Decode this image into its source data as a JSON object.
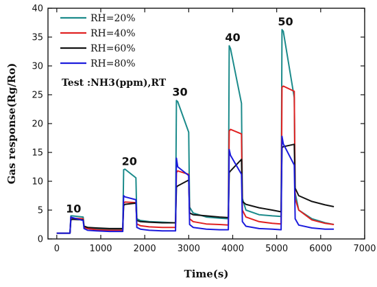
{
  "chart_data": {
    "type": "line",
    "title": "",
    "xlabel": "Time(s)",
    "ylabel": "Gas response(Rg/Ro)",
    "xlim": [
      -200,
      7000
    ],
    "ylim": [
      0,
      40
    ],
    "xticks": [
      0,
      1000,
      2000,
      3000,
      4000,
      5000,
      6000,
      7000
    ],
    "yticks": [
      0,
      5,
      10,
      15,
      20,
      25,
      30,
      35,
      40
    ],
    "grid": false,
    "legend_position": "top-left",
    "note": "Test :NH3(ppm),RT",
    "annotations": [
      {
        "text": "10",
        "x": 380,
        "y": 4.6
      },
      {
        "text": "20",
        "x": 1650,
        "y": 12.8
      },
      {
        "text": "30",
        "x": 2800,
        "y": 24.8
      },
      {
        "text": "40",
        "x": 4000,
        "y": 34.3
      },
      {
        "text": "50",
        "x": 5200,
        "y": 37.0
      }
    ],
    "series": [
      {
        "name": "RH=20%",
        "color": "#1a8a8a",
        "points": [
          [
            0,
            1.0
          ],
          [
            300,
            1.0
          ],
          [
            320,
            4.0
          ],
          [
            350,
            4.0
          ],
          [
            600,
            3.8
          ],
          [
            620,
            2.2
          ],
          [
            700,
            2.0
          ],
          [
            900,
            1.8
          ],
          [
            1200,
            1.7
          ],
          [
            1500,
            1.6
          ],
          [
            1520,
            12.0
          ],
          [
            1550,
            12.1
          ],
          [
            1800,
            10.6
          ],
          [
            1820,
            3.5
          ],
          [
            1900,
            3.2
          ],
          [
            2100,
            3.0
          ],
          [
            2400,
            2.9
          ],
          [
            2700,
            2.8
          ],
          [
            2720,
            24.0
          ],
          [
            2750,
            23.8
          ],
          [
            3000,
            18.5
          ],
          [
            3020,
            5.5
          ],
          [
            3100,
            4.5
          ],
          [
            3400,
            3.8
          ],
          [
            3700,
            3.6
          ],
          [
            3900,
            3.5
          ],
          [
            3920,
            33.5
          ],
          [
            3950,
            33.0
          ],
          [
            4200,
            23.5
          ],
          [
            4220,
            7.0
          ],
          [
            4300,
            5.0
          ],
          [
            4600,
            4.2
          ],
          [
            4900,
            4.0
          ],
          [
            5100,
            3.9
          ],
          [
            5120,
            36.3
          ],
          [
            5150,
            36.0
          ],
          [
            5400,
            24.5
          ],
          [
            5420,
            8.0
          ],
          [
            5500,
            5.0
          ],
          [
            5800,
            3.5
          ],
          [
            6100,
            2.8
          ],
          [
            6300,
            2.5
          ]
        ]
      },
      {
        "name": "RH=40%",
        "color": "#e02020",
        "points": [
          [
            0,
            1.0
          ],
          [
            300,
            1.0
          ],
          [
            320,
            3.6
          ],
          [
            350,
            3.6
          ],
          [
            600,
            3.5
          ],
          [
            620,
            2.0
          ],
          [
            700,
            1.8
          ],
          [
            900,
            1.6
          ],
          [
            1200,
            1.5
          ],
          [
            1500,
            1.5
          ],
          [
            1520,
            6.2
          ],
          [
            1550,
            6.4
          ],
          [
            1800,
            6.3
          ],
          [
            1820,
            2.6
          ],
          [
            1900,
            2.3
          ],
          [
            2100,
            2.1
          ],
          [
            2400,
            2.0
          ],
          [
            2700,
            2.0
          ],
          [
            2720,
            11.5
          ],
          [
            2750,
            11.8
          ],
          [
            3000,
            11.2
          ],
          [
            3020,
            3.5
          ],
          [
            3100,
            3.0
          ],
          [
            3400,
            2.6
          ],
          [
            3700,
            2.5
          ],
          [
            3900,
            2.4
          ],
          [
            3920,
            18.7
          ],
          [
            3950,
            19.0
          ],
          [
            4200,
            18.2
          ],
          [
            4220,
            5.0
          ],
          [
            4300,
            3.8
          ],
          [
            4600,
            3.0
          ],
          [
            4900,
            2.7
          ],
          [
            5100,
            2.6
          ],
          [
            5120,
            26.3
          ],
          [
            5150,
            26.5
          ],
          [
            5400,
            25.6
          ],
          [
            5420,
            7.0
          ],
          [
            5500,
            5.0
          ],
          [
            5800,
            3.3
          ],
          [
            6100,
            2.7
          ],
          [
            6300,
            2.5
          ]
        ]
      },
      {
        "name": "RH=60%",
        "color": "#111111",
        "points": [
          [
            0,
            1.0
          ],
          [
            300,
            1.0
          ],
          [
            320,
            3.3
          ],
          [
            350,
            3.4
          ],
          [
            600,
            3.3
          ],
          [
            620,
            2.2
          ],
          [
            700,
            2.0
          ],
          [
            900,
            1.9
          ],
          [
            1200,
            1.8
          ],
          [
            1500,
            1.8
          ],
          [
            1520,
            5.8
          ],
          [
            1550,
            6.0
          ],
          [
            1800,
            6.2
          ],
          [
            1820,
            3.2
          ],
          [
            1900,
            3.0
          ],
          [
            2100,
            2.9
          ],
          [
            2400,
            2.8
          ],
          [
            2700,
            2.8
          ],
          [
            2720,
            9.0
          ],
          [
            2750,
            9.2
          ],
          [
            3000,
            10.2
          ],
          [
            3020,
            4.5
          ],
          [
            3100,
            4.2
          ],
          [
            3400,
            4.0
          ],
          [
            3700,
            3.8
          ],
          [
            3900,
            3.7
          ],
          [
            3920,
            11.5
          ],
          [
            3950,
            11.8
          ],
          [
            4200,
            13.8
          ],
          [
            4220,
            6.5
          ],
          [
            4300,
            6.0
          ],
          [
            4600,
            5.4
          ],
          [
            4900,
            5.0
          ],
          [
            5100,
            4.7
          ],
          [
            5120,
            15.8
          ],
          [
            5150,
            16.0
          ],
          [
            5400,
            16.4
          ],
          [
            5420,
            8.8
          ],
          [
            5500,
            7.5
          ],
          [
            5800,
            6.5
          ],
          [
            6100,
            5.9
          ],
          [
            6300,
            5.6
          ]
        ]
      },
      {
        "name": "RH=80%",
        "color": "#1a1adc",
        "points": [
          [
            0,
            1.0
          ],
          [
            300,
            1.0
          ],
          [
            320,
            3.8
          ],
          [
            350,
            3.7
          ],
          [
            600,
            3.2
          ],
          [
            620,
            1.8
          ],
          [
            700,
            1.5
          ],
          [
            900,
            1.4
          ],
          [
            1200,
            1.3
          ],
          [
            1500,
            1.3
          ],
          [
            1520,
            7.5
          ],
          [
            1550,
            7.3
          ],
          [
            1800,
            6.8
          ],
          [
            1820,
            2.0
          ],
          [
            1900,
            1.7
          ],
          [
            2100,
            1.5
          ],
          [
            2400,
            1.4
          ],
          [
            2700,
            1.4
          ],
          [
            2720,
            14.0
          ],
          [
            2750,
            12.5
          ],
          [
            3000,
            11.0
          ],
          [
            3020,
            2.5
          ],
          [
            3100,
            2.0
          ],
          [
            3400,
            1.7
          ],
          [
            3700,
            1.6
          ],
          [
            3900,
            1.6
          ],
          [
            3920,
            15.5
          ],
          [
            3950,
            14.5
          ],
          [
            4200,
            11.2
          ],
          [
            4220,
            3.0
          ],
          [
            4300,
            2.2
          ],
          [
            4600,
            1.8
          ],
          [
            4900,
            1.7
          ],
          [
            5100,
            1.6
          ],
          [
            5120,
            17.8
          ],
          [
            5150,
            16.5
          ],
          [
            5400,
            12.8
          ],
          [
            5420,
            3.5
          ],
          [
            5500,
            2.4
          ],
          [
            5800,
            1.9
          ],
          [
            6100,
            1.7
          ],
          [
            6300,
            1.7
          ]
        ]
      }
    ]
  }
}
